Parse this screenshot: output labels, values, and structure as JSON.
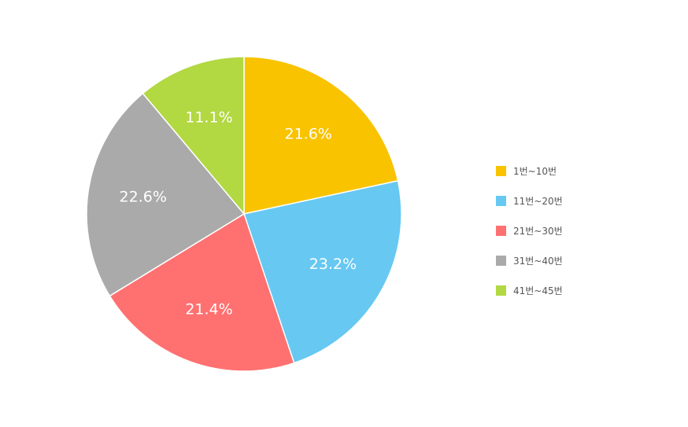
{
  "chart_data": {
    "type": "pie",
    "categories": [
      "1번~10번",
      "11번~20번",
      "21번~30번",
      "31번~40번",
      "41번~45번"
    ],
    "values": [
      21.6,
      23.2,
      21.4,
      22.6,
      11.1
    ],
    "value_labels": [
      "21.6%",
      "23.2%",
      "21.4%",
      "22.6%",
      "11.1%"
    ],
    "colors": [
      "#f9c300",
      "#67c8f2",
      "#ff7070",
      "#aaaaaa",
      "#b2d842"
    ],
    "start_angle": "12 o'clock",
    "direction": "clockwise",
    "legend_position": "right"
  }
}
